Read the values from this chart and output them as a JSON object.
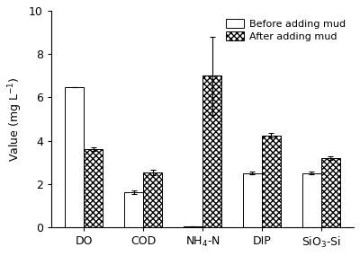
{
  "categories": [
    "DO",
    "COD",
    "NH$_4$-N",
    "DIP",
    "SiO$_3$-Si"
  ],
  "before_values": [
    6.45,
    1.6,
    0.05,
    2.5,
    2.5
  ],
  "after_values": [
    3.6,
    2.52,
    7.0,
    4.25,
    3.2
  ],
  "before_errors": [
    0.0,
    0.08,
    0.0,
    0.05,
    0.07
  ],
  "after_errors": [
    0.08,
    0.12,
    1.8,
    0.09,
    0.09
  ],
  "ylabel": "Value (mg L$^{-1}$)",
  "ylim": [
    0,
    10
  ],
  "yticks": [
    0,
    2,
    4,
    6,
    8,
    10
  ],
  "legend_before": "Before adding mud",
  "legend_after": "After adding mud",
  "bar_width": 0.32,
  "before_color": "white",
  "after_color": "white",
  "edge_color": "black",
  "figure_width": 4.0,
  "figure_height": 2.85,
  "dpi": 100
}
